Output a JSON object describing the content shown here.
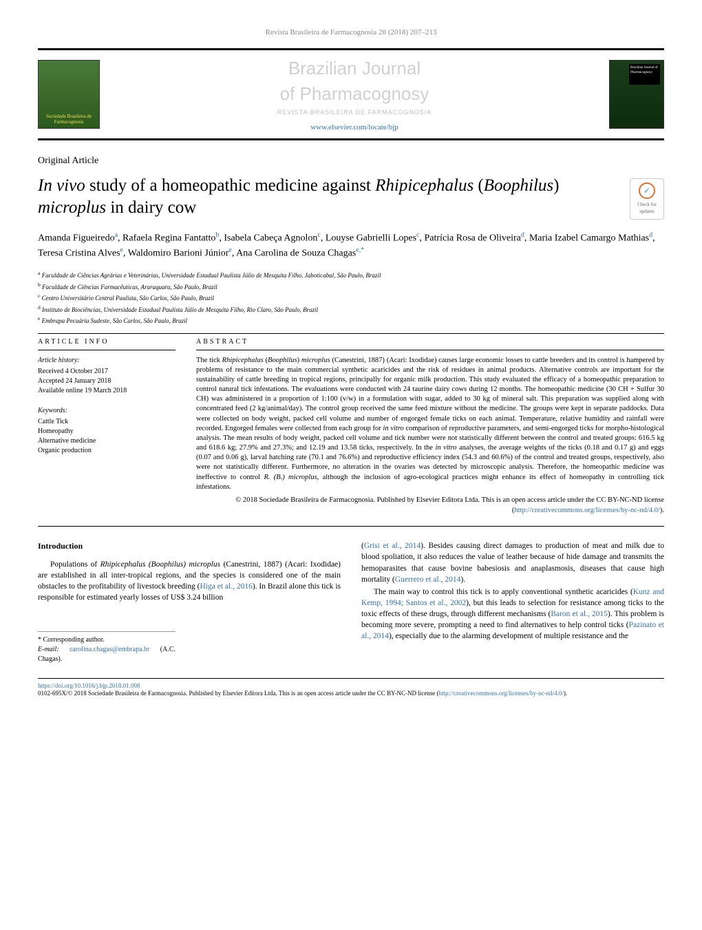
{
  "journal_ref": "Revista Brasileira de Farmacognosia 28 (2018) 207–213",
  "header": {
    "logo_left_text": "Sociedade Brasileira de Farmacognosia",
    "journal_title_1": "Brazilian Journal",
    "journal_title_2": "of Pharmacognosy",
    "journal_subtitle": "REVISTA BRASILEIRA DE FARMACOGNOSIA",
    "journal_url": "www.elsevier.com/locate/bjp",
    "logo_right_badge": "Brazilian Journal of Pharmacognosy"
  },
  "article_type": "Original Article",
  "title_part1": "In vivo",
  "title_part2": " study of a homeopathic medicine against ",
  "title_part3": "Rhipicephalus",
  "title_part4": " (",
  "title_part5": "Boophilus",
  "title_part6": ") ",
  "title_part7": "microplus",
  "title_part8": " in dairy cow",
  "check_updates": "Check for updates",
  "authors_line1": "Amanda Figueiredo",
  "authors_sup1": "a",
  "authors_sep": ", ",
  "authors_name2": "Rafaela Regina Fantatto",
  "authors_sup2": "b",
  "authors_name3": "Isabela Cabeça Agnolon",
  "authors_sup3": "c",
  "authors_name4": "Louyse Gabrielli Lopes",
  "authors_sup4": "c",
  "authors_name5": "Patrícia Rosa de Oliveira",
  "authors_sup5": "d",
  "authors_name6": "Maria Izabel Camargo Mathias",
  "authors_sup6": "d",
  "authors_name7": "Teresa Cristina Alves",
  "authors_sup7": "e",
  "authors_name8": "Waldomiro Barioni Júnior",
  "authors_sup8": "e",
  "authors_name9": "Ana Carolina de Souza Chagas",
  "authors_sup9": "e,*",
  "affiliations": {
    "a": "Faculdade de Ciências Agrárias e Veterinárias, Universidade Estadual Paulista Júlio de Mesquita Filho, Jaboticabal, São Paulo, Brazil",
    "b": "Faculdade de Ciências Farmacêuticas, Araraquara, São Paulo, Brazil",
    "c": "Centro Universitário Central Paulista, São Carlos, São Paulo, Brazil",
    "d": "Instituto de Biociências, Universidade Estadual Paulista Júlio de Mesquita Filho, Rio Claro, São Paulo, Brazil",
    "e": "Embrapa Pecuária Sudeste, São Carlos, São Paulo, Brazil"
  },
  "article_info": {
    "heading": "ARTICLE INFO",
    "history_label": "Article history:",
    "received": "Received 4 October 2017",
    "accepted": "Accepted 24 January 2018",
    "online": "Available online 19 March 2018",
    "keywords_label": "Keywords:",
    "keywords": [
      "Cattle Tick",
      "Homeopathy",
      "Alternative medicine",
      "Organic production"
    ]
  },
  "abstract": {
    "heading": "ABSTRACT",
    "text_p1a": "The tick ",
    "text_p1b": "Rhipicephalus",
    "text_p1c": " (",
    "text_p1d": "Boophilus",
    "text_p1e": ") ",
    "text_p1f": "microplus",
    "text_p1g": " (Canestrini, 1887) (Acari: Ixodidae) causes large economic losses to cattle breeders and its control is hampered by problems of resistance to the main commercial synthetic acaricides and the risk of residues in animal products. Alternative controls are important for the sustainability of cattle breeding in tropical regions, principally for organic milk production. This study evaluated the efficacy of a homeopathic preparation to control natural tick infestations. The evaluations were conducted with 24 taurine dairy cows during 12 months. The homeopathic medicine (30 CH + Sulfur 30 CH) was administered in a proportion of 1:100 (v/w) in a formulation with sugar, added to 30 kg of mineral salt. This preparation was supplied along with concentrated feed (2 kg/animal/day). The control group received the same feed mixture without the medicine. The groups were kept in separate paddocks. Data were collected on body weight, packed cell volume and number of engorged female ticks on each animal. Temperature, relative humidity and rainfall were recorded. Engorged females were collected from each group for ",
    "text_p1h": "in vitro",
    "text_p1i": " comparison of reproductive parameters, and semi-engorged ticks for morpho-histological analysis. The mean results of body weight, packed cell volume and tick number were not statistically different between the control and treated groups: 616.5 kg and 618.6 kg; 27.9% and 27.3%; and 12.19 and 13.58 ticks, respectively. In the ",
    "text_p1j": "in vitro",
    "text_p1k": " analyses, the average weights of the ticks (0.18 and 0.17 g) and eggs (0.07 and 0.06 g), larval hatching rate (70.1 and 76.6%) and reproductive efficiency index (54.3 and 60.6%) of the control and treated groups, respectively, also were not statistically different. Furthermore, no alteration in the ovaries was detected by microscopic analysis. Therefore, the homeopathic medicine was ineffective to control ",
    "text_p1l": "R. (B.) microplus",
    "text_p1m": ", although the inclusion of agro-ecological practices might enhance its effect of homeopathy in controlling tick infestations.",
    "copyright": "© 2018 Sociedade Brasileira de Farmacognosia. Published by Elsevier Editora Ltda. This is an open access article under the CC BY-NC-ND license (",
    "copyright_link": "http://creativecommons.org/licenses/by-nc-nd/4.0/",
    "copyright_end": ")."
  },
  "body": {
    "intro_heading": "Introduction",
    "left_p1a": "Populations of ",
    "left_p1b": "Rhipicephalus (Boophilus) microplus",
    "left_p1c": " (Canestrini, 1887) (Acari: Ixodidae) are established in all inter-tropical regions, and the species is considered one of the main obstacles to the profitability of livestock breeding (",
    "left_p1d": "Higa et al., 2016",
    "left_p1e": "). In Brazil alone this tick is responsible for estimated yearly losses of US$ 3.24 billion",
    "right_p1a": "(",
    "right_p1b": "Grisi et al., 2014",
    "right_p1c": "). Besides causing direct damages to production of meat and milk due to blood spoliation, it also reduces the value of leather because of hide damage and transmits the hemoparasites that cause bovine babesiosis and anaplasmosis, diseases that cause high mortality (",
    "right_p1d": "Guerrero et al., 2014",
    "right_p1e": ").",
    "right_p2a": "The main way to control this tick is to apply conventional synthetic acaricides (",
    "right_p2b": "Kunz and Kemp, 1994; Santos et al., 2002",
    "right_p2c": "), but this leads to selection for resistance among ticks to the toxic effects of these drugs, through different mechanisms (",
    "right_p2d": "Baron et al., 2015",
    "right_p2e": "). This problem is becoming more severe, prompting a need to find alternatives to help control ticks (",
    "right_p2f": "Pazinato et al., 2014",
    "right_p2g": "), especially due to the alarming development of multiple resistance and the"
  },
  "corresponding": {
    "label": "* Corresponding author.",
    "email_label": "E-mail:",
    "email": "carolina.chagas@embrapa.br",
    "email_suffix": " (A.C. Chagas)."
  },
  "footer": {
    "doi": "https://doi.org/10.1016/j.bjp.2018.01.008",
    "issn": "0102-695X/© 2018 Sociedade Brasileira de Farmacognosia. Published by Elsevier Editora Ltda. This is an open access article under the CC BY-NC-ND license (",
    "license_link": "http://creativecommons.org/licenses/by-nc-nd/4.0/",
    "issn_end": ")."
  },
  "colors": {
    "link": "#3070b0",
    "text": "#000000",
    "bg": "#ffffff",
    "header_title": "#d0d0d0"
  }
}
